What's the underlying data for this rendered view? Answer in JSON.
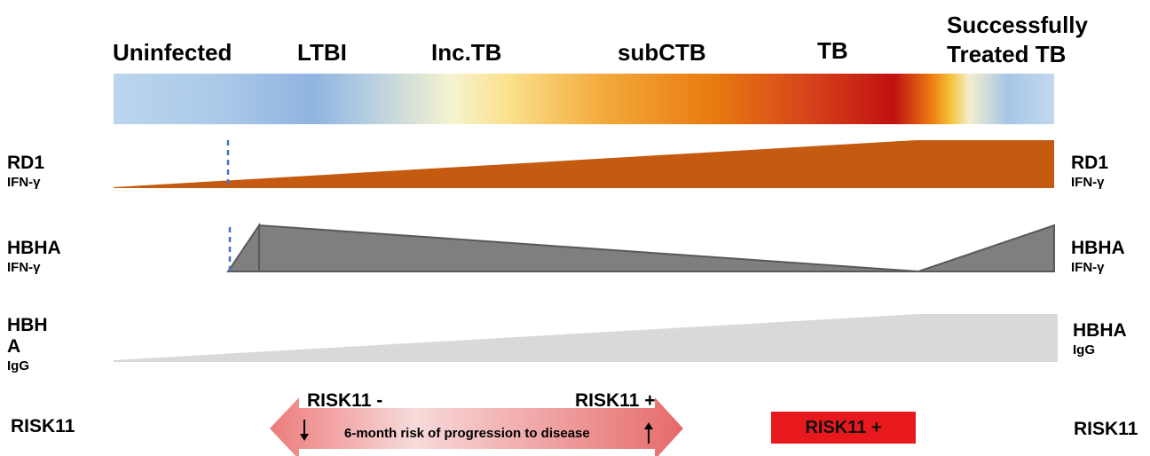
{
  "stages": [
    "Uninfected",
    "LTBI",
    "Inc.TB",
    "subCTB",
    "TB",
    "Successfully",
    "Treated TB"
  ],
  "rows": {
    "rd1": {
      "name": "RD1",
      "sub": "IFN-γ"
    },
    "hbha_ifn": {
      "name": "HBHA",
      "sub": "IFN-γ"
    },
    "hbha_igg_left": {
      "line1": "HBH",
      "line2": "A",
      "sub": "IgG"
    },
    "hbha_igg_right": {
      "name": "HBHA",
      "sub": "IgG"
    },
    "risk11": "RISK11"
  },
  "risk": {
    "minus_label": "RISK11 -",
    "plus_label": "RISK11 +",
    "arrow_text": "6-month risk of progression to disease",
    "badge": "RISK11 +"
  },
  "colors": {
    "rd1_fill": "#c55a11",
    "hbha_fill": "#7f7f7f",
    "hbha_stroke": "#595959",
    "igg_fill": "#d9d9d9",
    "dashed_line": "#4472c4",
    "arrow_start": "#ec7b7b",
    "arrow_mid": "#f8d7d7",
    "badge": "#e8191c"
  }
}
